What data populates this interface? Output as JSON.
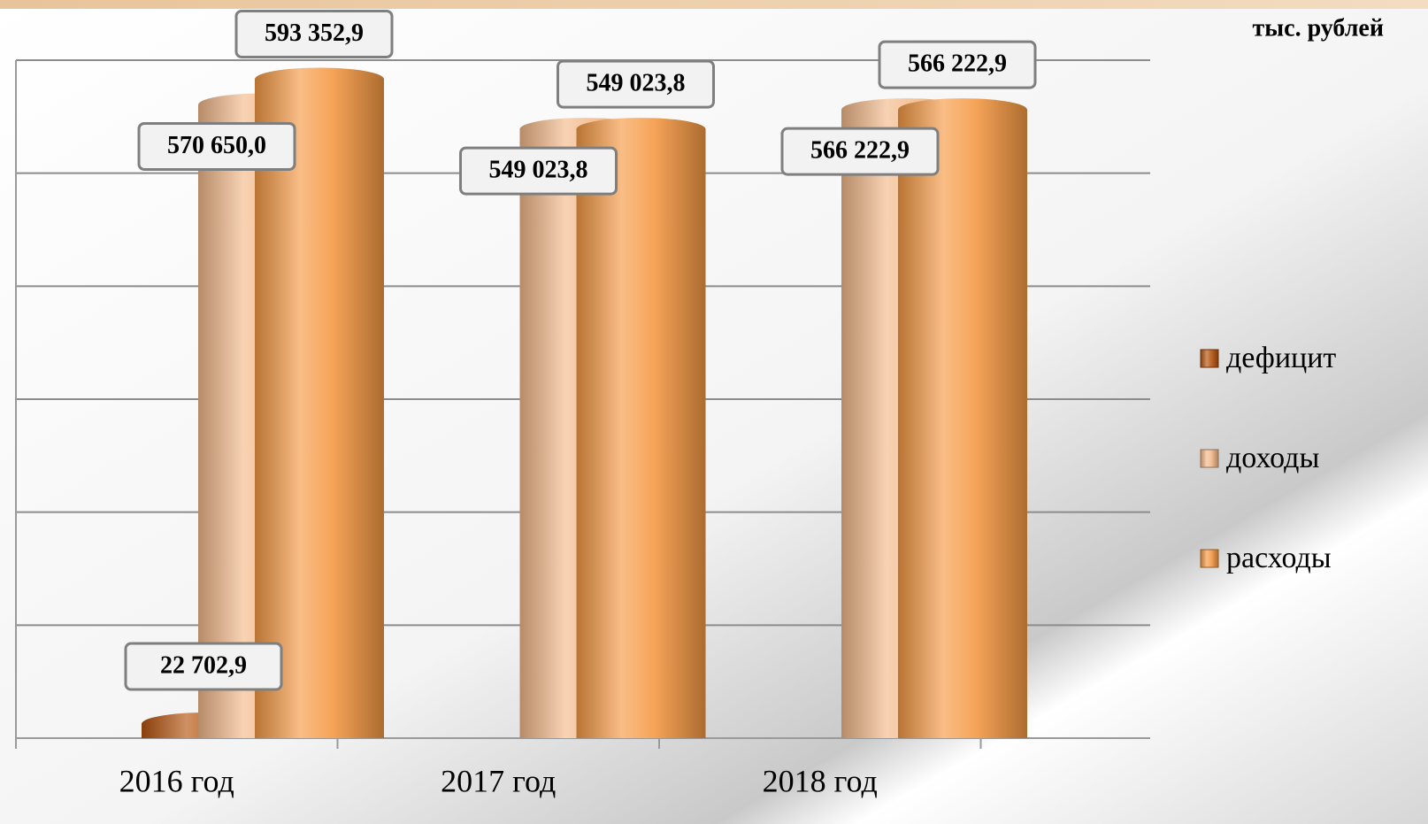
{
  "chart_data": {
    "type": "bar",
    "unit": "тыс. рублей",
    "categories": [
      "2016 год",
      "2017 год",
      "2018 год"
    ],
    "series": [
      {
        "name": "дефицит",
        "color": "#b5540f",
        "values": [
          22702.9,
          null,
          null
        ],
        "value_labels": [
          "22 702,9",
          null,
          null
        ]
      },
      {
        "name": "доходы",
        "color": "#f3b98a",
        "values": [
          570650.0,
          549023.8,
          566222.9
        ],
        "value_labels": [
          "570 650,0",
          "549 023,8",
          "566 222,9"
        ]
      },
      {
        "name": "расходы",
        "color": "#f59a45",
        "values": [
          593352.9,
          549023.8,
          566222.9
        ],
        "value_labels": [
          "593 352,9",
          "549 023,8",
          "566 222,9"
        ]
      }
    ],
    "ylim": [
      0,
      600000
    ],
    "yticks": [
      0,
      100000,
      200000,
      300000,
      400000,
      500000,
      600000
    ],
    "grid": true,
    "legend": "right"
  }
}
